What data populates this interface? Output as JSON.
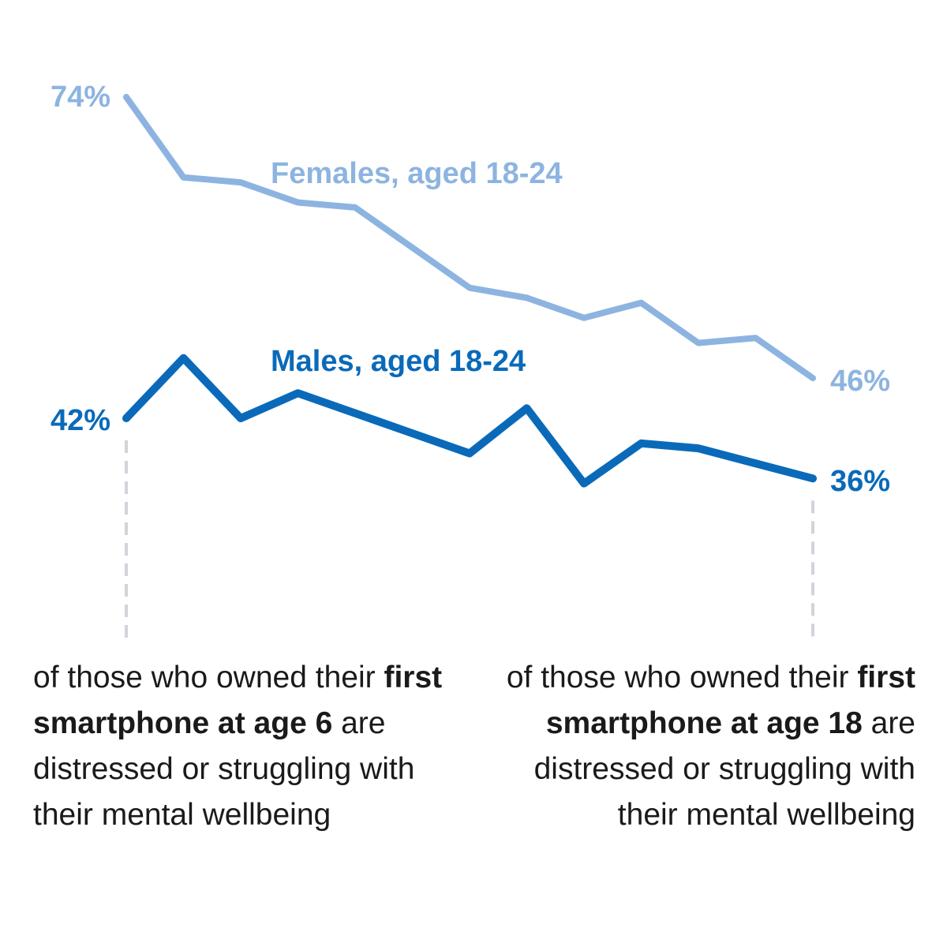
{
  "chart_data": {
    "type": "line",
    "x": [
      6,
      7,
      8,
      9,
      10,
      11,
      12,
      13,
      14,
      15,
      16,
      17,
      18
    ],
    "ylim": [
      30,
      80
    ],
    "grid": false,
    "legend": "inline",
    "series": [
      {
        "name": "Females, aged 18-24",
        "color": "#8db4e0",
        "values": [
          74,
          66,
          65.5,
          63.5,
          63,
          59,
          55,
          54,
          52,
          53.5,
          49.5,
          50,
          46
        ],
        "start_label": "74%",
        "end_label": "46%"
      },
      {
        "name": "Males, aged 18-24",
        "color": "#0a6ab9",
        "values": [
          42,
          48,
          42,
          44.5,
          42.5,
          40.5,
          38.5,
          43,
          35.5,
          39.5,
          39,
          37.5,
          36
        ],
        "start_label": "42%",
        "end_label": "36%"
      }
    ]
  },
  "captions": {
    "left": {
      "pre": "of those who owned their ",
      "bold1": "first smartphone at age 6",
      "post": " are distressed or struggling with their mental wellbeing"
    },
    "right": {
      "pre": "of those who owned their ",
      "bold1": "first smartphone at age 18",
      "post": " are distressed or struggling with their mental wellbeing"
    }
  },
  "guide_color": "#d3d3dc"
}
